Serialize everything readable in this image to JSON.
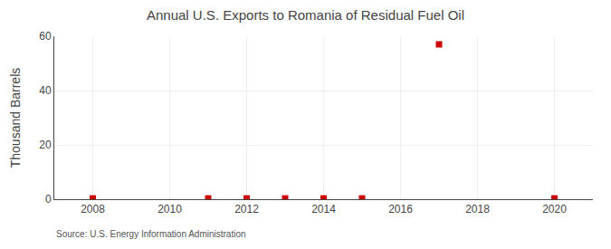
{
  "chart_data": {
    "type": "scatter",
    "title": "Annual U.S. Exports to Romania of Residual Fuel Oil",
    "ylabel": "Thousand Barrels",
    "annotations": [
      "Source: U.S. Energy Information Administration"
    ],
    "x": [
      2008,
      2011,
      2012,
      2013,
      2014,
      2015,
      2017,
      2020
    ],
    "values": [
      0.3,
      0.3,
      0.3,
      0.3,
      0.3,
      0.3,
      57,
      0.3
    ],
    "color": "#cc0000",
    "marker": "square",
    "xlim": [
      2007,
      2021
    ],
    "ylim": [
      0,
      60
    ],
    "xticks": [
      2008,
      2010,
      2012,
      2014,
      2016,
      2018,
      2020
    ],
    "yticks": [
      0,
      20,
      40,
      60
    ],
    "grid": true
  }
}
